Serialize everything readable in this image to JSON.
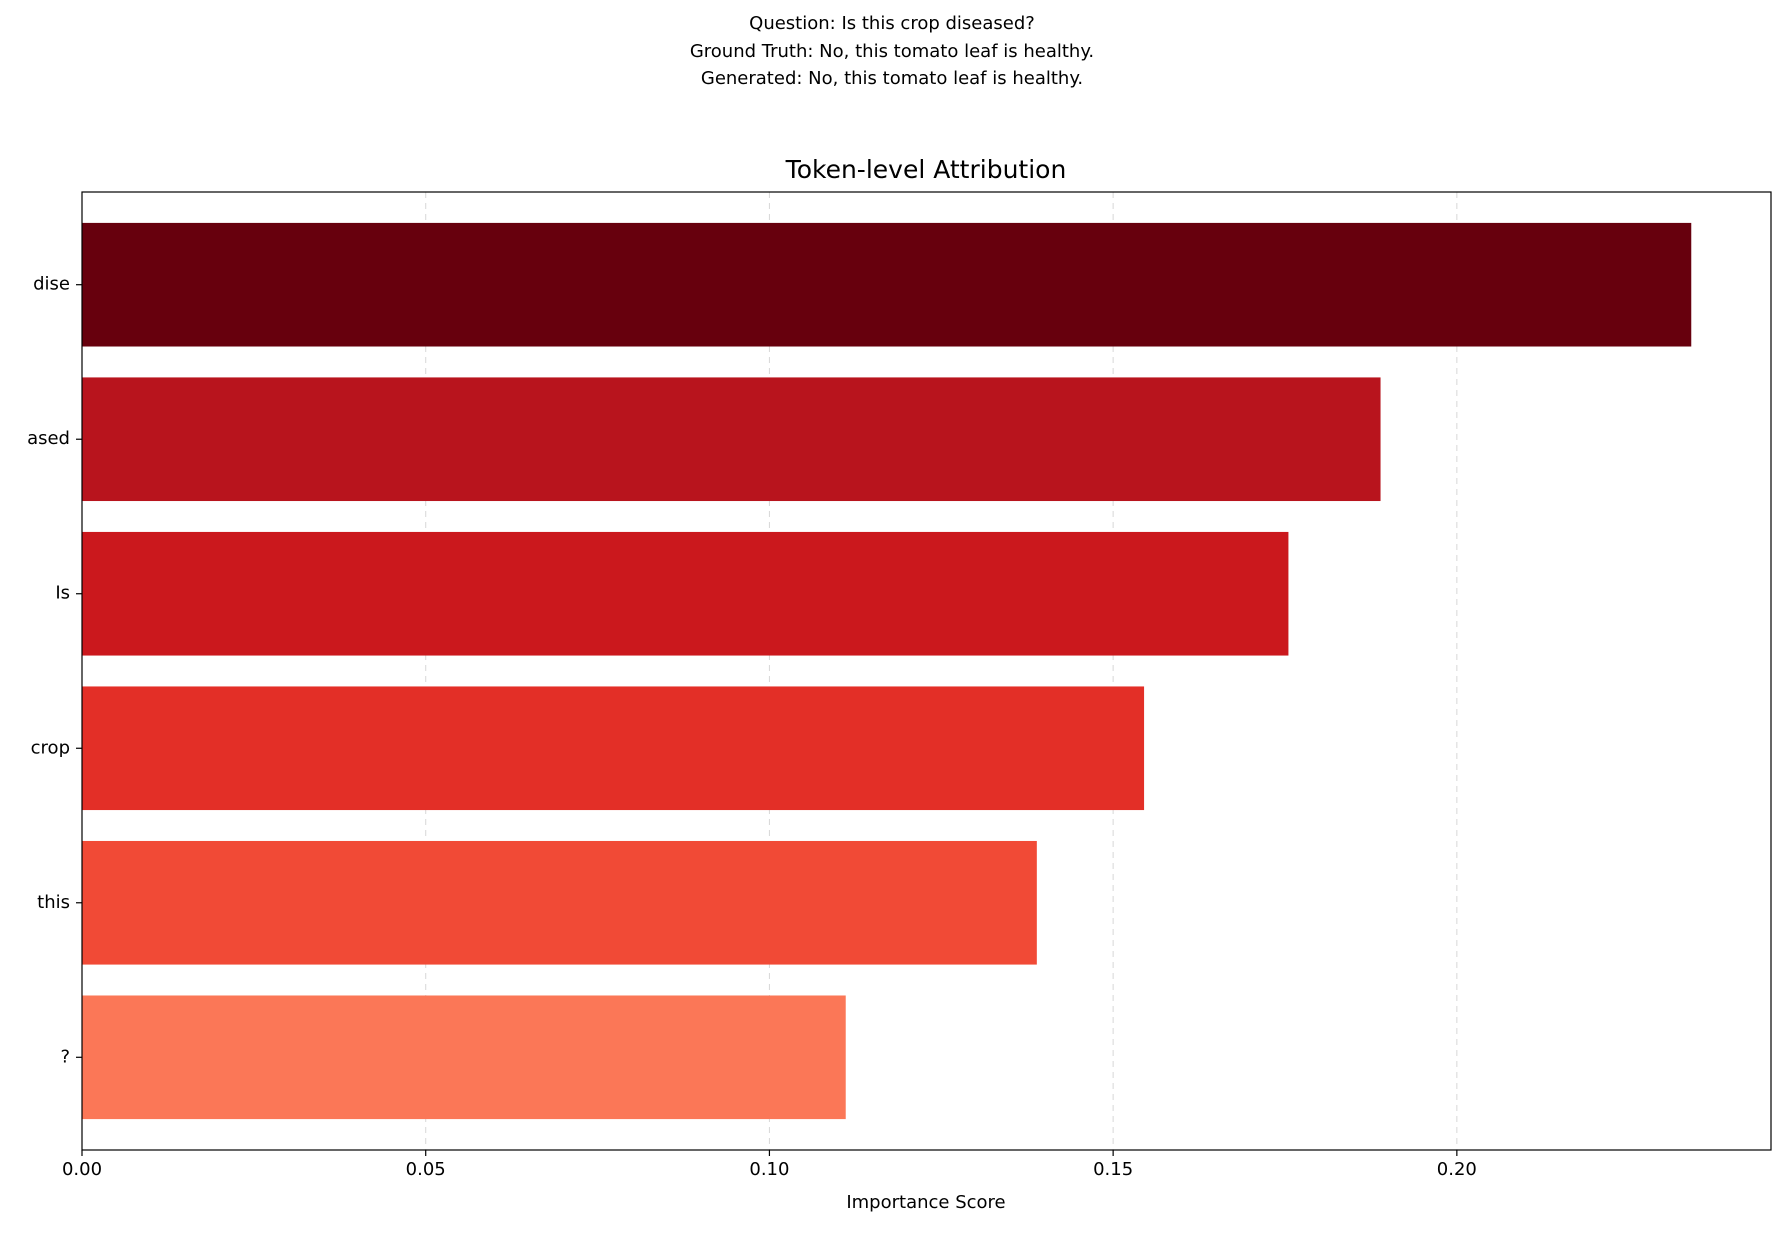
{
  "chart_data": {
    "type": "barh",
    "subtitle": [
      "Question: Is this crop diseased?",
      "Ground Truth: No, this tomato leaf is healthy.",
      "Generated: No, this tomato leaf is healthy."
    ],
    "title": "Token-level Attribution",
    "x_label": "Importance Score",
    "categories": [
      "dise",
      "ased",
      "Is",
      "crop",
      "this",
      "?"
    ],
    "values": [
      0.2341,
      0.1889,
      0.1755,
      0.1545,
      0.1389,
      0.1111
    ],
    "colors": [
      "#67000d",
      "#b8141d",
      "#cb181d",
      "#e32f27",
      "#f14a36",
      "#fb7757"
    ],
    "xlim": [
      0,
      0.2457
    ],
    "xticks": [
      {
        "value": 0,
        "label": "0.00"
      },
      {
        "value": 0.05,
        "label": "0.05"
      },
      {
        "value": 0.1,
        "label": "0.10"
      },
      {
        "value": 0.15,
        "label": "0.15"
      },
      {
        "value": 0.2,
        "label": "0.20"
      }
    ],
    "grid": true
  }
}
